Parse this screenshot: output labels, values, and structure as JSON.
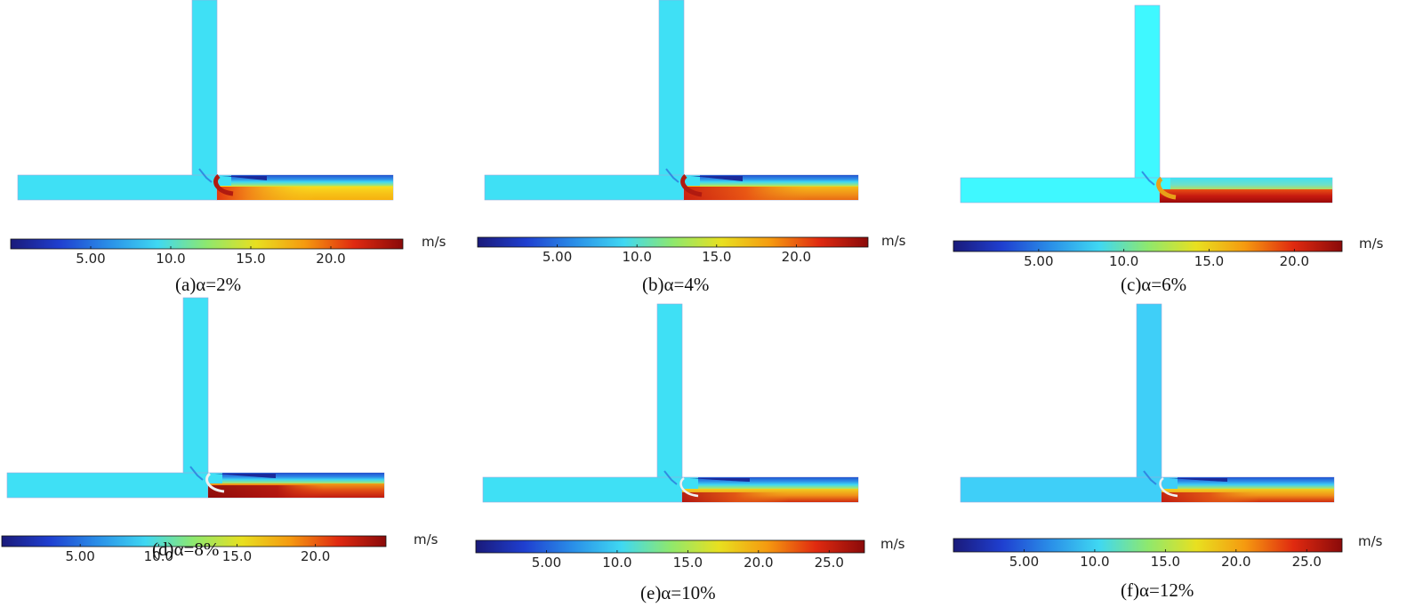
{
  "figure": {
    "description_free": true,
    "colormap": [
      "#1a1a7a",
      "#1f3fd0",
      "#2a8fe8",
      "#3fd8f2",
      "#8ee86e",
      "#e8e020",
      "#f59a10",
      "#e02a10",
      "#8a0a0a"
    ],
    "base_flow_color": "#3fe0f5",
    "panels": [
      {
        "id": "a",
        "caption": "(a)α=2%",
        "unit": "m/s",
        "vmax": 24.5,
        "ticks": [
          "5.00",
          "10.0",
          "15.0",
          "20.0"
        ],
        "tick_values": [
          5,
          10,
          15,
          20
        ]
      },
      {
        "id": "b",
        "caption": "(b)α=4%",
        "unit": "m/s",
        "vmax": 24.5,
        "ticks": [
          "5.00",
          "10.0",
          "15.0",
          "20.0"
        ],
        "tick_values": [
          5,
          10,
          15,
          20
        ]
      },
      {
        "id": "c",
        "caption": "(c)α=6%",
        "unit": "m/s",
        "vmax": 22.8,
        "ticks": [
          "5.00",
          "10.0",
          "15.0",
          "20.0"
        ],
        "tick_values": [
          5,
          10,
          15,
          20
        ]
      },
      {
        "id": "d",
        "caption": "(d)α=8%",
        "unit": "m/s",
        "vmax": 24.5,
        "ticks": [
          "5.00",
          "10.0",
          "15.0",
          "20.0"
        ],
        "tick_values": [
          5,
          10,
          15,
          20
        ]
      },
      {
        "id": "e",
        "caption": "(e)α=10%",
        "unit": "m/s",
        "vmax": 27.5,
        "ticks": [
          "5.00",
          "10.0",
          "15.0",
          "20.0",
          "25.0"
        ],
        "tick_values": [
          5,
          10,
          15,
          20,
          25
        ]
      },
      {
        "id": "f",
        "caption": "(f)α=12%",
        "unit": "m/s",
        "vmax": 27.5,
        "ticks": [
          "5.00",
          "10.0",
          "15.0",
          "20.0",
          "25.0"
        ],
        "tick_values": [
          5,
          10,
          15,
          20,
          25
        ]
      }
    ]
  }
}
